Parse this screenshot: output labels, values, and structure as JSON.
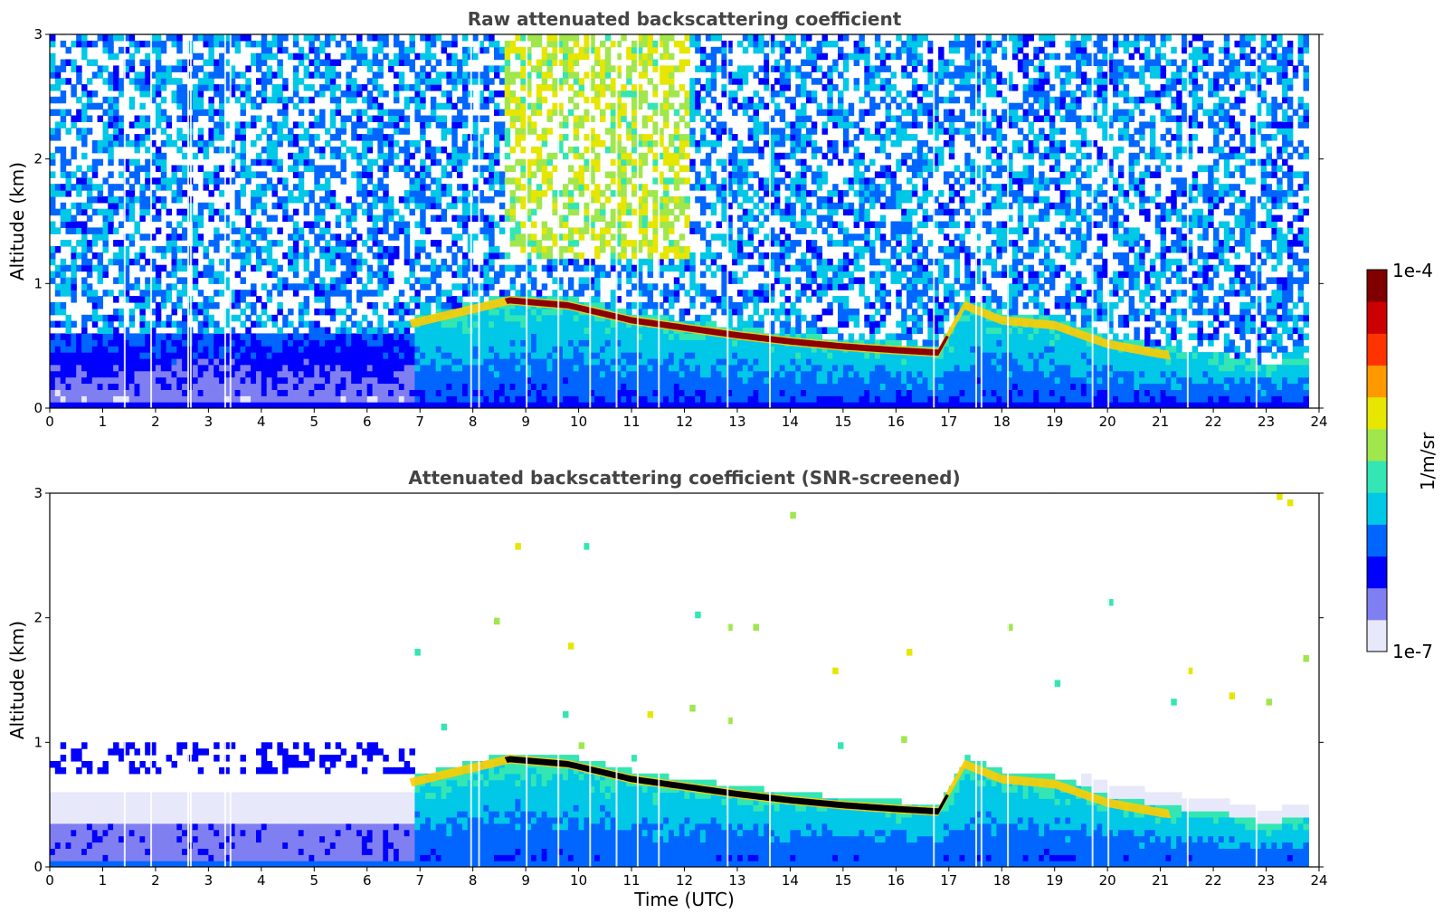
{
  "chart_data": [
    {
      "type": "heatmap",
      "title": "Raw attenuated backscattering coefficient",
      "xlabel": "",
      "ylabel": "Altitude (km)",
      "xlim": [
        0,
        24
      ],
      "ylim": [
        0,
        3
      ],
      "x_ticks": [
        0,
        1,
        2,
        3,
        4,
        5,
        6,
        7,
        8,
        9,
        10,
        11,
        12,
        13,
        14,
        15,
        16,
        17,
        18,
        19,
        20,
        21,
        22,
        23,
        24
      ],
      "y_ticks": [
        0,
        1,
        2,
        3
      ],
      "screened": false,
      "layer_top_km": [
        {
          "t": 6.8,
          "alt": 0.71
        },
        {
          "t": 7.9,
          "alt": 0.82
        },
        {
          "t": 8.7,
          "alt": 0.9
        },
        {
          "t": 9.8,
          "alt": 0.86
        },
        {
          "t": 11,
          "alt": 0.74
        },
        {
          "t": 12,
          "alt": 0.68
        },
        {
          "t": 13,
          "alt": 0.62
        },
        {
          "t": 14,
          "alt": 0.57
        },
        {
          "t": 15,
          "alt": 0.53
        },
        {
          "t": 16,
          "alt": 0.5
        },
        {
          "t": 16.8,
          "alt": 0.48
        },
        {
          "t": 17.3,
          "alt": 0.86
        },
        {
          "t": 18,
          "alt": 0.74
        },
        {
          "t": 19,
          "alt": 0.7
        },
        {
          "t": 20,
          "alt": 0.55
        },
        {
          "t": 21,
          "alt": 0.47
        },
        {
          "t": 22,
          "alt": 0.42
        },
        {
          "t": 23,
          "alt": 0.33
        },
        {
          "t": 23.75,
          "alt": 0.4
        }
      ]
    },
    {
      "type": "heatmap",
      "title": "Attenuated backscattering coefficient (SNR-screened)",
      "xlabel": "Time (UTC)",
      "ylabel": "Altitude (km)",
      "xlim": [
        0,
        24
      ],
      "ylim": [
        0,
        3
      ],
      "x_ticks": [
        0,
        1,
        2,
        3,
        4,
        5,
        6,
        7,
        8,
        9,
        10,
        11,
        12,
        13,
        14,
        15,
        16,
        17,
        18,
        19,
        20,
        21,
        22,
        23,
        24
      ],
      "y_ticks": [
        0,
        1,
        2,
        3
      ],
      "screened": true,
      "layer_top_km": [
        {
          "t": 6.8,
          "alt": 0.71
        },
        {
          "t": 7.9,
          "alt": 0.82
        },
        {
          "t": 8.7,
          "alt": 0.9
        },
        {
          "t": 9.8,
          "alt": 0.86
        },
        {
          "t": 11,
          "alt": 0.74
        },
        {
          "t": 12,
          "alt": 0.68
        },
        {
          "t": 13,
          "alt": 0.62
        },
        {
          "t": 14,
          "alt": 0.57
        },
        {
          "t": 15,
          "alt": 0.53
        },
        {
          "t": 16,
          "alt": 0.5
        },
        {
          "t": 16.8,
          "alt": 0.48
        },
        {
          "t": 17.3,
          "alt": 0.86
        },
        {
          "t": 18,
          "alt": 0.74
        },
        {
          "t": 19,
          "alt": 0.7
        },
        {
          "t": 20,
          "alt": 0.55
        },
        {
          "t": 21,
          "alt": 0.47
        },
        {
          "t": 22,
          "alt": 0.42
        },
        {
          "t": 23,
          "alt": 0.33
        },
        {
          "t": 23.75,
          "alt": 0.4
        }
      ]
    }
  ],
  "colorbar": {
    "label": "1/m/sr",
    "max_label": "1e-4",
    "min_label": "1e-7",
    "colormap": [
      "#e8e8fb",
      "#7f7ff2",
      "#0000ff",
      "#0066ff",
      "#00c8e6",
      "#33e6b3",
      "#a0e64d",
      "#e6e600",
      "#ff9900",
      "#ff3300",
      "#cc0000",
      "#800000"
    ]
  },
  "colors": {
    "layer_max": "#8b0000",
    "layer_max_screened": "#000000",
    "title_text": "#444444"
  }
}
